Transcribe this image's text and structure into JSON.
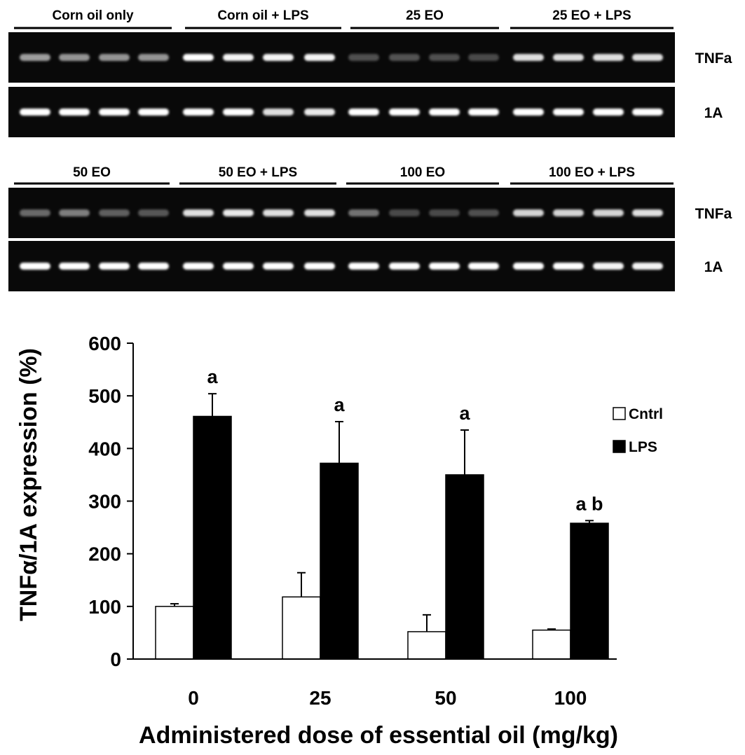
{
  "gel_panels": [
    {
      "groups": [
        "Corn oil only",
        "Corn oil + LPS",
        "25 EO",
        "25 EO + LPS"
      ],
      "rows": [
        {
          "label": "TNFa",
          "intensity": [
            0.55,
            0.5,
            0.5,
            0.5,
            1.0,
            0.95,
            0.95,
            0.95,
            0.18,
            0.2,
            0.18,
            0.15,
            0.85,
            0.85,
            0.85,
            0.85
          ]
        },
        {
          "label": "1A",
          "intensity": [
            1,
            1,
            1,
            1,
            1,
            1,
            0.85,
            0.9,
            1,
            1,
            1,
            1,
            1,
            1,
            1,
            1
          ]
        }
      ]
    },
    {
      "groups": [
        "50 EO",
        "50 EO + LPS",
        "100 EO",
        "100 EO + LPS"
      ],
      "rows": [
        {
          "label": "TNFa",
          "intensity": [
            0.3,
            0.4,
            0.25,
            0.22,
            0.85,
            0.9,
            0.85,
            0.85,
            0.35,
            0.15,
            0.15,
            0.18,
            0.8,
            0.8,
            0.8,
            0.85
          ]
        },
        {
          "label": "1A",
          "intensity": [
            1,
            1,
            1,
            1,
            1,
            1,
            1,
            1,
            1,
            1,
            1,
            1,
            1,
            1,
            0.95,
            0.95
          ]
        }
      ]
    }
  ],
  "chart_data": {
    "type": "bar",
    "categories": [
      "0",
      "25",
      "50",
      "100"
    ],
    "series": [
      {
        "name": "Cntrl",
        "values": [
          100,
          118,
          52,
          55
        ],
        "errors": [
          5,
          46,
          32,
          2
        ],
        "annotations": [
          "",
          "",
          "",
          ""
        ],
        "color": "#ffffff"
      },
      {
        "name": "LPS",
        "values": [
          461,
          372,
          350,
          258
        ],
        "errors": [
          43,
          79,
          85,
          5
        ],
        "annotations": [
          "a",
          "a",
          "a",
          "a b"
        ],
        "color": "#000000"
      }
    ],
    "xlabel": "Administered dose of essential oil (mg/kg)",
    "ylabel": "TNFα/1A expression (%)",
    "ylim": [
      0,
      600
    ],
    "yticks": [
      "0",
      "100",
      "200",
      "300",
      "400",
      "500",
      "600"
    ],
    "legend_position": "right",
    "grid": false
  }
}
